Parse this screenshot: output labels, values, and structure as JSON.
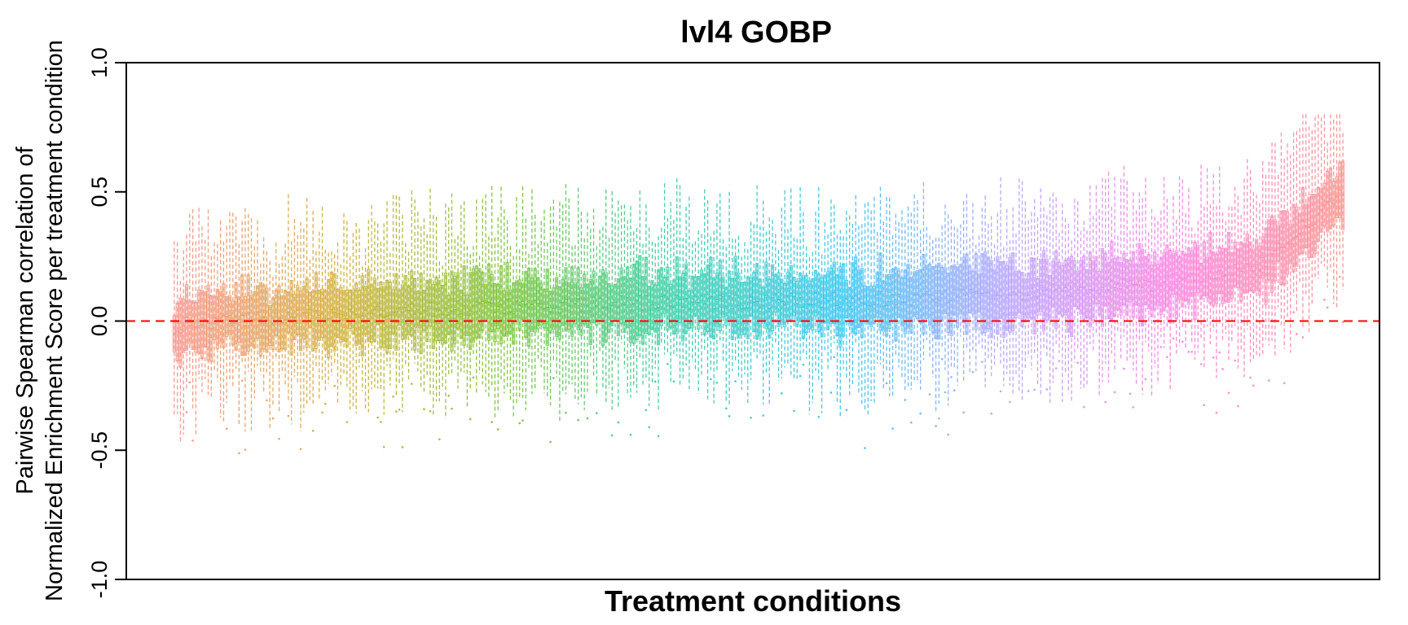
{
  "chart_data": {
    "type": "box",
    "title": "lvl4 GOBP",
    "xlabel": "Treatment conditions",
    "ylabel_line1": "Pairwise Spearman correlation of",
    "ylabel_line2": "Normalized Enrichment Score per treatment condition",
    "ylim": [
      -1.0,
      1.0
    ],
    "yticks": [
      "-1.0",
      "-0.5",
      "0.0",
      "0.5",
      "1.0"
    ],
    "reference_line": {
      "y": 0.0,
      "style": "dashed",
      "color": "#ff0000"
    },
    "n_conditions": 380,
    "ordering": "sorted by median correlation, ascending",
    "median_trend": [
      {
        "position": 0.0,
        "median": -0.02
      },
      {
        "position": 0.1,
        "median": 0.02
      },
      {
        "position": 0.25,
        "median": 0.05
      },
      {
        "position": 0.4,
        "median": 0.07
      },
      {
        "position": 0.55,
        "median": 0.08
      },
      {
        "position": 0.7,
        "median": 0.1
      },
      {
        "position": 0.85,
        "median": 0.15
      },
      {
        "position": 0.93,
        "median": 0.22
      },
      {
        "position": 1.0,
        "median": 0.5
      }
    ],
    "spread": {
      "q1_to_q3": 0.25,
      "whisker_range": [
        -0.6,
        0.8
      ]
    },
    "palette": [
      "#f8766d",
      "#c49a00",
      "#53b400",
      "#00c094",
      "#00b6eb",
      "#a58aff",
      "#fb61d7",
      "#f8766d"
    ],
    "grid": false,
    "legend": "none"
  }
}
